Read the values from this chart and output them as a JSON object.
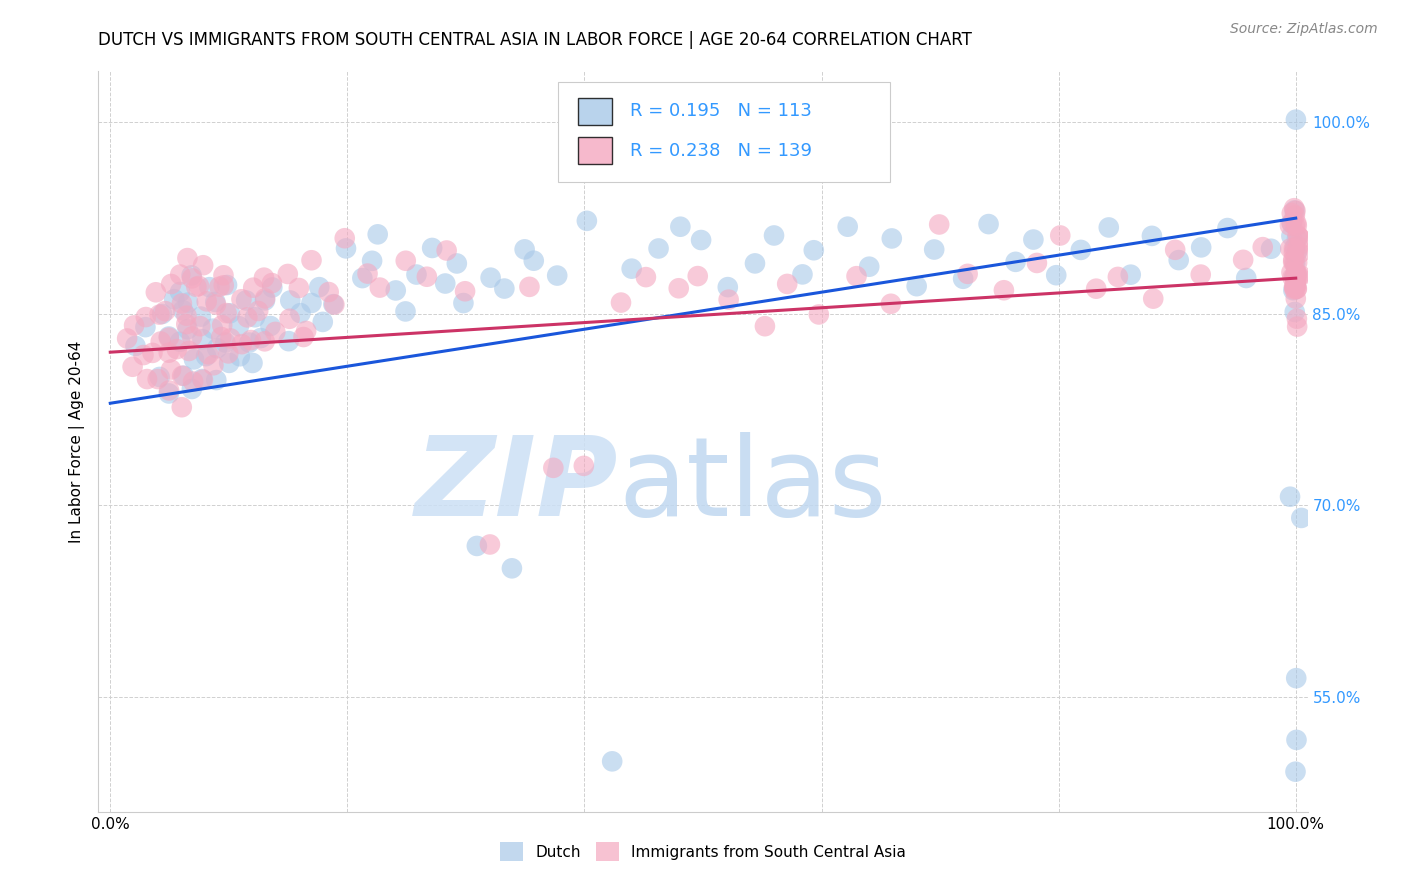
{
  "title": "DUTCH VS IMMIGRANTS FROM SOUTH CENTRAL ASIA IN LABOR FORCE | AGE 20-64 CORRELATION CHART",
  "source": "Source: ZipAtlas.com",
  "ylabel": "In Labor Force | Age 20-64",
  "yticks": [
    1.0,
    0.85,
    0.7,
    0.55
  ],
  "ytick_labels": [
    "100.0%",
    "85.0%",
    "70.0%",
    "55.0%"
  ],
  "legend_entry1": {
    "R": "0.195",
    "N": "113",
    "label": "Dutch"
  },
  "legend_entry2": {
    "R": "0.238",
    "N": "139",
    "label": "Immigrants from South Central Asia"
  },
  "blue_color": "#a8c8e8",
  "pink_color": "#f4a8c0",
  "blue_edge": "#7aafd4",
  "pink_edge": "#e87aa0",
  "line_blue": "#1a56db",
  "line_pink": "#cc3366",
  "tick_color": "#3399ff",
  "watermark_zip_color": "#cce0f5",
  "watermark_atlas_color": "#c0d8f0",
  "blue_scatter_x": [
    0.02,
    0.03,
    0.04,
    0.04,
    0.05,
    0.05,
    0.05,
    0.06,
    0.06,
    0.06,
    0.06,
    0.07,
    0.07,
    0.07,
    0.07,
    0.07,
    0.08,
    0.08,
    0.08,
    0.08,
    0.08,
    0.09,
    0.09,
    0.09,
    0.09,
    0.1,
    0.1,
    0.1,
    0.1,
    0.11,
    0.11,
    0.11,
    0.12,
    0.12,
    0.12,
    0.13,
    0.13,
    0.14,
    0.14,
    0.15,
    0.15,
    0.16,
    0.17,
    0.18,
    0.18,
    0.19,
    0.2,
    0.21,
    0.22,
    0.23,
    0.24,
    0.25,
    0.26,
    0.27,
    0.28,
    0.29,
    0.3,
    0.31,
    0.32,
    0.33,
    0.34,
    0.35,
    0.36,
    0.38,
    0.4,
    0.42,
    0.44,
    0.46,
    0.48,
    0.5,
    0.52,
    0.54,
    0.56,
    0.58,
    0.6,
    0.62,
    0.64,
    0.66,
    0.68,
    0.7,
    0.72,
    0.74,
    0.76,
    0.78,
    0.8,
    0.82,
    0.84,
    0.86,
    0.88,
    0.9,
    0.92,
    0.94,
    0.96,
    0.98,
    1.0,
    1.0,
    1.0,
    1.0,
    1.0,
    1.0,
    1.0,
    1.0,
    1.0,
    1.0,
    1.0,
    1.0,
    1.0,
    1.0,
    1.0,
    1.0,
    1.0,
    1.0,
    1.0
  ],
  "blue_scatter_y": [
    0.82,
    0.84,
    0.8,
    0.85,
    0.79,
    0.83,
    0.86,
    0.8,
    0.83,
    0.85,
    0.87,
    0.79,
    0.81,
    0.84,
    0.86,
    0.88,
    0.8,
    0.82,
    0.83,
    0.85,
    0.87,
    0.8,
    0.82,
    0.84,
    0.86,
    0.81,
    0.83,
    0.85,
    0.87,
    0.82,
    0.84,
    0.86,
    0.81,
    0.83,
    0.85,
    0.83,
    0.86,
    0.84,
    0.87,
    0.83,
    0.86,
    0.85,
    0.86,
    0.84,
    0.87,
    0.86,
    0.9,
    0.88,
    0.89,
    0.91,
    0.87,
    0.85,
    0.88,
    0.9,
    0.87,
    0.89,
    0.86,
    0.67,
    0.88,
    0.87,
    0.65,
    0.9,
    0.89,
    0.88,
    0.92,
    0.5,
    0.88,
    0.9,
    0.92,
    0.91,
    0.87,
    0.89,
    0.91,
    0.88,
    0.9,
    0.92,
    0.89,
    0.91,
    0.87,
    0.9,
    0.88,
    0.92,
    0.89,
    0.91,
    0.88,
    0.9,
    0.92,
    0.88,
    0.91,
    0.89,
    0.9,
    0.92,
    0.88,
    0.9,
    0.93,
    0.91,
    0.89,
    0.88,
    0.87,
    0.9,
    0.92,
    0.88,
    0.85,
    0.87,
    0.89,
    0.91,
    0.69,
    0.56,
    0.52,
    0.49,
    0.71,
    0.88,
    1.0
  ],
  "pink_scatter_x": [
    0.01,
    0.02,
    0.02,
    0.03,
    0.03,
    0.03,
    0.04,
    0.04,
    0.04,
    0.04,
    0.04,
    0.05,
    0.05,
    0.05,
    0.05,
    0.05,
    0.05,
    0.06,
    0.06,
    0.06,
    0.06,
    0.06,
    0.06,
    0.06,
    0.07,
    0.07,
    0.07,
    0.07,
    0.07,
    0.07,
    0.08,
    0.08,
    0.08,
    0.08,
    0.08,
    0.08,
    0.09,
    0.09,
    0.09,
    0.09,
    0.09,
    0.1,
    0.1,
    0.1,
    0.1,
    0.1,
    0.11,
    0.11,
    0.11,
    0.12,
    0.12,
    0.12,
    0.13,
    0.13,
    0.13,
    0.14,
    0.14,
    0.15,
    0.15,
    0.16,
    0.16,
    0.17,
    0.17,
    0.18,
    0.19,
    0.2,
    0.22,
    0.23,
    0.25,
    0.27,
    0.28,
    0.3,
    0.32,
    0.35,
    0.37,
    0.4,
    0.43,
    0.45,
    0.48,
    0.5,
    0.52,
    0.55,
    0.57,
    0.6,
    0.63,
    0.66,
    0.7,
    0.72,
    0.75,
    0.78,
    0.8,
    0.83,
    0.85,
    0.88,
    0.9,
    0.92,
    0.95,
    0.97,
    1.0,
    1.0,
    1.0,
    1.0,
    1.0,
    1.0,
    1.0,
    1.0,
    1.0,
    1.0,
    1.0,
    1.0,
    1.0,
    1.0,
    1.0,
    1.0,
    1.0,
    1.0,
    1.0,
    1.0,
    1.0,
    1.0,
    1.0,
    1.0,
    1.0,
    1.0,
    1.0,
    1.0,
    1.0,
    1.0,
    1.0,
    1.0,
    1.0,
    1.0,
    1.0,
    1.0,
    1.0,
    1.0,
    1.0,
    1.0,
    1.0
  ],
  "pink_scatter_y": [
    0.83,
    0.81,
    0.84,
    0.8,
    0.82,
    0.85,
    0.8,
    0.82,
    0.83,
    0.85,
    0.87,
    0.79,
    0.81,
    0.82,
    0.83,
    0.85,
    0.87,
    0.78,
    0.8,
    0.82,
    0.84,
    0.86,
    0.88,
    0.89,
    0.8,
    0.82,
    0.83,
    0.85,
    0.87,
    0.88,
    0.8,
    0.82,
    0.84,
    0.86,
    0.87,
    0.89,
    0.81,
    0.83,
    0.84,
    0.86,
    0.87,
    0.82,
    0.83,
    0.85,
    0.87,
    0.88,
    0.83,
    0.85,
    0.86,
    0.83,
    0.85,
    0.87,
    0.83,
    0.86,
    0.88,
    0.84,
    0.87,
    0.85,
    0.88,
    0.83,
    0.87,
    0.84,
    0.89,
    0.87,
    0.86,
    0.91,
    0.88,
    0.87,
    0.89,
    0.88,
    0.9,
    0.87,
    0.67,
    0.87,
    0.73,
    0.73,
    0.86,
    0.88,
    0.87,
    0.88,
    0.86,
    0.84,
    0.87,
    0.85,
    0.88,
    0.86,
    0.92,
    0.88,
    0.87,
    0.89,
    0.91,
    0.87,
    0.88,
    0.86,
    0.9,
    0.88,
    0.89,
    0.9,
    0.92,
    0.88,
    0.89,
    0.87,
    0.85,
    0.88,
    0.84,
    0.87,
    0.9,
    0.88,
    0.91,
    0.89,
    0.93,
    0.87,
    0.88,
    0.9,
    0.92,
    0.88,
    0.86,
    0.87,
    0.9,
    0.88,
    0.87,
    0.89,
    0.91,
    0.88,
    0.93,
    0.9,
    0.89,
    0.92,
    0.91,
    0.88,
    0.9,
    0.87,
    0.93,
    0.92,
    0.88,
    0.9,
    0.87,
    0.93,
    0.92
  ],
  "blue_line_x": [
    0.0,
    1.0
  ],
  "blue_line_y": [
    0.78,
    0.925
  ],
  "pink_line_x": [
    0.0,
    1.0
  ],
  "pink_line_y": [
    0.82,
    0.878
  ],
  "xlim": [
    -0.01,
    1.01
  ],
  "ylim": [
    0.46,
    1.04
  ],
  "xticks": [
    0.0,
    0.2,
    0.4,
    0.6,
    0.8,
    1.0
  ],
  "xtick_labels": [
    "0.0%",
    "",
    "",
    "",
    "",
    "100.0%"
  ],
  "background_color": "#ffffff",
  "grid_color": "#d0d0d0",
  "title_fontsize": 12,
  "axis_label_fontsize": 11,
  "tick_fontsize": 11,
  "source_fontsize": 10
}
